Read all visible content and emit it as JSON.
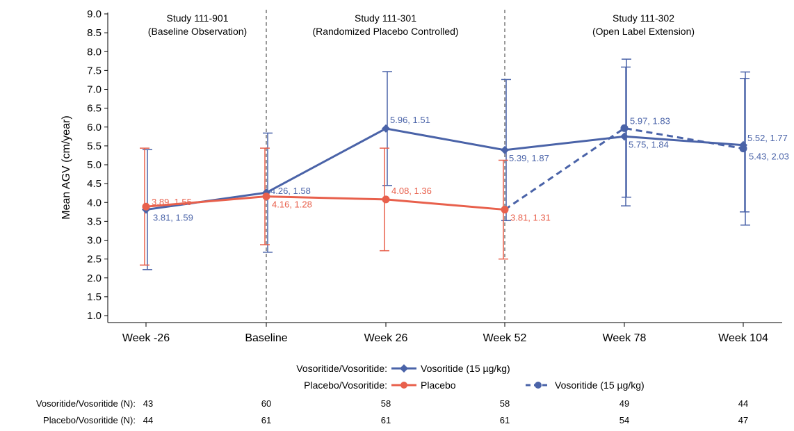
{
  "chart_data": {
    "type": "line",
    "ylabel": "Mean AGV (cm/year)",
    "xlabel": "",
    "ylim": [
      1.0,
      9.0
    ],
    "yticks": [
      "1.0",
      "1.5",
      "2.0",
      "2.5",
      "3.0",
      "3.5",
      "4.0",
      "4.5",
      "5.0",
      "5.5",
      "6.0",
      "6.5",
      "7.0",
      "7.5",
      "8.0",
      "8.5",
      "9.0"
    ],
    "categories": [
      "Week -26",
      "Baseline",
      "Week 26",
      "Week 52",
      "Week 78",
      "Week 104"
    ],
    "periods": [
      {
        "title": "Study 111-901",
        "subtitle": "(Baseline Observation)"
      },
      {
        "title": "Study 111-301",
        "subtitle": "(Randomized Placebo Controlled)"
      },
      {
        "title": "Study 111-302",
        "subtitle": "(Open Label Extension)"
      }
    ],
    "period_dividers_after": [
      "Baseline",
      "Week 52"
    ],
    "series": [
      {
        "name": "Vosoritide (15 µg/kg)",
        "group": "Vosoritide/Vosoritide",
        "color": "#4a63a8",
        "style": "solid",
        "points": [
          {
            "x": "Week -26",
            "mean": 3.81,
            "sd": 1.59,
            "label": "3.81, 1.59"
          },
          {
            "x": "Baseline",
            "mean": 4.26,
            "sd": 1.58,
            "label": "4.26, 1.58"
          },
          {
            "x": "Week 26",
            "mean": 5.96,
            "sd": 1.51,
            "label": "5.96, 1.51"
          },
          {
            "x": "Week 52",
            "mean": 5.39,
            "sd": 1.87,
            "label": "5.39, 1.87"
          },
          {
            "x": "Week 78",
            "mean": 5.75,
            "sd": 1.84,
            "label": "5.75, 1.84"
          },
          {
            "x": "Week 104",
            "mean": 5.52,
            "sd": 1.77,
            "label": "5.52, 1.77"
          }
        ]
      },
      {
        "name": "Placebo",
        "group": "Placebo/Vosoritide",
        "color": "#e8604c",
        "style": "solid",
        "points": [
          {
            "x": "Week -26",
            "mean": 3.89,
            "sd": 1.55,
            "label": "3.89, 1.55"
          },
          {
            "x": "Baseline",
            "mean": 4.16,
            "sd": 1.28,
            "label": "4.16, 1.28"
          },
          {
            "x": "Week 26",
            "mean": 4.08,
            "sd": 1.36,
            "label": "4.08, 1.36"
          },
          {
            "x": "Week 52",
            "mean": 3.81,
            "sd": 1.31,
            "label": "3.81, 1.31"
          }
        ]
      },
      {
        "name": "Vosoritide (15 µg/kg)",
        "group": "Placebo/Vosoritide",
        "color": "#4a63a8",
        "style": "dashed",
        "points": [
          {
            "x": "Week 52",
            "mean": 3.81,
            "sd": 1.31,
            "label": ""
          },
          {
            "x": "Week 78",
            "mean": 5.97,
            "sd": 1.83,
            "label": "5.97, 1.83"
          },
          {
            "x": "Week 104",
            "mean": 5.43,
            "sd": 2.03,
            "label": "5.43, 2.03"
          }
        ]
      }
    ],
    "legend": {
      "rows": [
        {
          "group_label": "Vosoritide/Vosoritide:",
          "entries": [
            {
              "label": "Vosoritide (15 µg/kg)",
              "color": "#4a63a8",
              "style": "solid",
              "marker": "diamond"
            }
          ]
        },
        {
          "group_label": "Placebo/Vosoritide:",
          "entries": [
            {
              "label": "Placebo",
              "color": "#e8604c",
              "style": "solid",
              "marker": "circle"
            },
            {
              "label": "Vosoritide (15 µg/kg)",
              "color": "#4a63a8",
              "style": "dashed",
              "marker": "circle"
            }
          ]
        }
      ]
    },
    "n_table": [
      {
        "label": "Vosoritide/Vosoritide (N):",
        "values": [
          "43",
          "60",
          "58",
          "58",
          "49",
          "44"
        ]
      },
      {
        "label": "Placebo/Vosoritide (N):",
        "values": [
          "44",
          "61",
          "61",
          "61",
          "54",
          "47"
        ]
      }
    ]
  }
}
